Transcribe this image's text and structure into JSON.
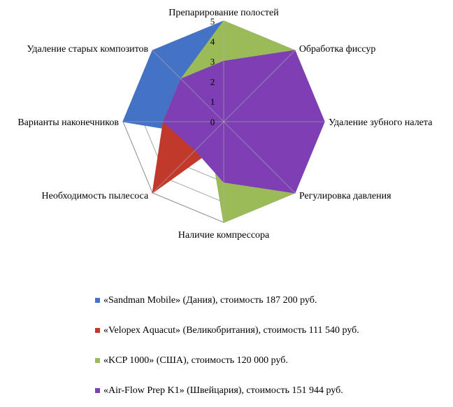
{
  "chart_data": {
    "type": "radar",
    "axes": [
      "Препарирование полостей",
      "Обработка фиссур",
      "Удаление зубного налета",
      "Регулировка давления",
      "Наличие компрессора",
      "Необходимость пылесоса",
      "Варианты наконечников",
      "Удаление старых композитов"
    ],
    "rlim": [
      0,
      5
    ],
    "ticks": [
      "0",
      "1",
      "2",
      "3",
      "4",
      "5"
    ],
    "grid": true,
    "legend_position": "bottom",
    "series": [
      {
        "name": "«Sandman Mobile» (Дания), стоимость 187 200 руб.",
        "color": "#4472C4",
        "values": [
          5,
          5,
          5,
          5,
          5,
          1,
          5,
          5
        ]
      },
      {
        "name": "«Velopex Aquacut» (Великобритания), стоимость 111 540 руб.",
        "color": "#C0392B",
        "values": [
          3,
          5,
          5,
          5,
          1,
          5,
          3,
          3
        ]
      },
      {
        "name": "«KCP 1000» (США), стоимость 120 000 руб.",
        "color": "#9BBB59",
        "values": [
          5,
          5,
          5,
          5,
          5,
          1,
          3,
          3
        ]
      },
      {
        "name": "«Air-Flow Prep K1» (Швейцария), стоимость 151 944 руб.",
        "color": "#7E3FB5",
        "values": [
          3,
          5,
          5,
          5,
          3,
          2,
          3,
          3
        ]
      }
    ]
  }
}
